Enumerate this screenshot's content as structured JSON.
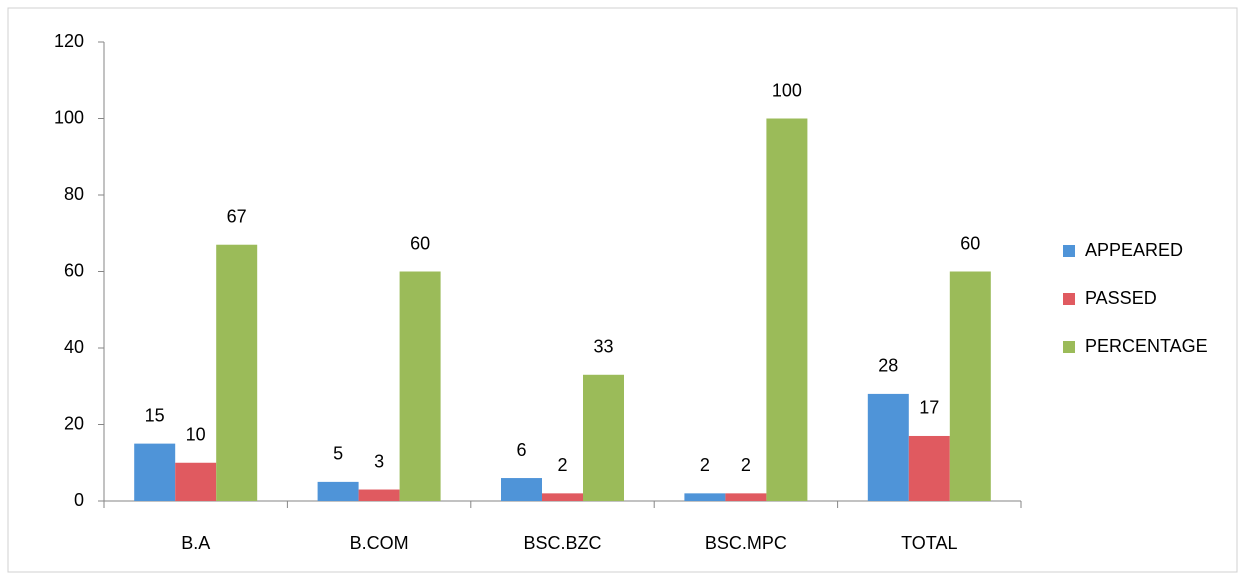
{
  "chart_data": {
    "type": "bar",
    "categories": [
      "B.A",
      "B.COM",
      "BSC.BZC",
      "BSC.MPC",
      "TOTAL"
    ],
    "series": [
      {
        "name": "APPEARED",
        "color": "#4f94d8",
        "values": [
          15,
          5,
          6,
          2,
          28
        ]
      },
      {
        "name": "PASSED",
        "color": "#e05a60",
        "values": [
          10,
          3,
          2,
          2,
          17
        ]
      },
      {
        "name": "PERCENTAGE",
        "color": "#9bbb59",
        "values": [
          67,
          60,
          33,
          100,
          60
        ]
      }
    ],
    "ylim": [
      0,
      120
    ],
    "yticks": [
      0,
      20,
      40,
      60,
      80,
      100,
      120
    ],
    "grid": false,
    "legend": "right",
    "data_labels": true
  }
}
